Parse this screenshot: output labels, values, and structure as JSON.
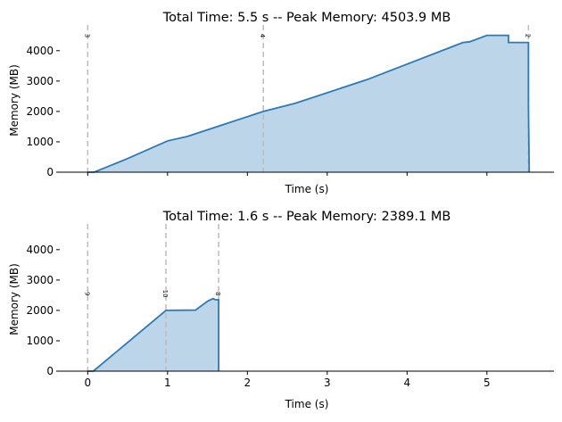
{
  "chart_data": [
    {
      "type": "area",
      "title": "Total Time: 5.5 s -- Peak Memory: 4503.9 MB",
      "xlabel": "Time (s)",
      "ylabel": "Memory (MB)",
      "xlim": [
        -0.35,
        5.84
      ],
      "ylim": [
        0,
        4729
      ],
      "xticks": [
        0,
        1,
        2,
        3,
        4,
        5
      ],
      "xtick_labels_shown": false,
      "yticks": [
        0,
        1000,
        2000,
        3000,
        4000
      ],
      "ytick_labels": [
        "0",
        "1000",
        "2000",
        "3000",
        "4000"
      ],
      "grid": false,
      "color": "#2c7bb6",
      "fill_color": "#bcd5e8",
      "x": [
        0,
        0.08,
        0.5,
        1.0,
        1.25,
        2.2,
        2.6,
        3.5,
        4.7,
        4.78,
        5.0,
        5.27,
        5.27,
        5.52,
        5.52,
        5.53
      ],
      "y": [
        0,
        0,
        450,
        1030,
        1180,
        2000,
        2270,
        3050,
        4270,
        4290,
        4504,
        4504,
        4270,
        4270,
        2200,
        0
      ],
      "markers": [
        {
          "x": 0,
          "label": "3"
        },
        {
          "x": 2.2,
          "label": "4"
        },
        {
          "x": 5.52,
          "label": "2"
        }
      ]
    },
    {
      "type": "area",
      "title": "Total Time: 1.6 s -- Peak Memory: 2389.1 MB",
      "xlabel": "Time (s)",
      "ylabel": "Memory (MB)",
      "xlim": [
        -0.35,
        5.84
      ],
      "ylim": [
        0,
        4729
      ],
      "xticks": [
        0,
        1,
        2,
        3,
        4,
        5
      ],
      "xtick_labels": [
        "0",
        "1",
        "2",
        "3",
        "4",
        "5"
      ],
      "xtick_labels_shown": true,
      "yticks": [
        0,
        1000,
        2000,
        3000,
        4000
      ],
      "ytick_labels": [
        "0",
        "1000",
        "2000",
        "3000",
        "4000"
      ],
      "grid": false,
      "color": "#2c7bb6",
      "fill_color": "#bcd5e8",
      "x": [
        0,
        0.07,
        0.98,
        1.35,
        1.5,
        1.57,
        1.6,
        1.64,
        1.64
      ],
      "y": [
        0,
        0,
        2000,
        2010,
        2300,
        2389,
        2350,
        2350,
        0
      ],
      "markers": [
        {
          "x": 0,
          "label": "9"
        },
        {
          "x": 0.98,
          "label": "10"
        },
        {
          "x": 1.64,
          "label": "8"
        }
      ]
    }
  ]
}
